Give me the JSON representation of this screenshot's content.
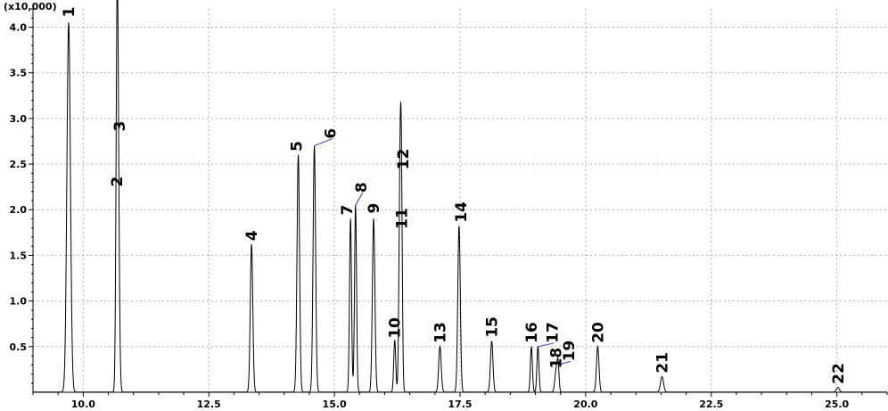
{
  "chart_data": {
    "type": "line",
    "title": "",
    "xlabel": "",
    "ylabel": "",
    "y_multiplier_label": "(x10,000)",
    "xlim": [
      9.0,
      26.0
    ],
    "ylim": [
      0,
      4.2
    ],
    "x_ticks": [
      "10.0",
      "12.5",
      "15.0",
      "17.5",
      "20.0",
      "22.5",
      "25.0"
    ],
    "x_tick_values": [
      10.0,
      12.5,
      15.0,
      17.5,
      20.0,
      22.5,
      25.0
    ],
    "y_ticks": [
      "0.5",
      "1.0",
      "1.5",
      "2.0",
      "2.5",
      "3.0",
      "3.5",
      "4.0"
    ],
    "y_tick_values": [
      0.5,
      1.0,
      1.5,
      2.0,
      2.5,
      3.0,
      3.5,
      4.0
    ],
    "grid": true,
    "line_color": "#000000",
    "annotation_color": "#3333cc",
    "peaks": [
      {
        "label": "1",
        "rt": 9.71,
        "height": 4.05,
        "width": 0.035
      },
      {
        "label": "2",
        "rt": 10.67,
        "height": 2.25,
        "width": 0.02
      },
      {
        "label": "3",
        "rt": 10.69,
        "height": 2.8,
        "width": 0.025
      },
      {
        "label": "4",
        "rt": 13.35,
        "height": 1.62,
        "width": 0.025
      },
      {
        "label": "5",
        "rt": 14.28,
        "height": 2.6,
        "width": 0.025
      },
      {
        "label": "6",
        "rt": 14.6,
        "height": 2.7,
        "width": 0.025
      },
      {
        "label": "7",
        "rt": 15.32,
        "height": 1.9,
        "width": 0.02
      },
      {
        "label": "8",
        "rt": 15.42,
        "height": 2.05,
        "width": 0.02
      },
      {
        "label": "9",
        "rt": 15.78,
        "height": 1.9,
        "width": 0.025
      },
      {
        "label": "10",
        "rt": 16.2,
        "height": 0.57,
        "width": 0.02
      },
      {
        "label": "11",
        "rt": 16.3,
        "height": 1.75,
        "width": 0.02
      },
      {
        "label": "12",
        "rt": 16.33,
        "height": 2.4,
        "width": 0.02
      },
      {
        "label": "13",
        "rt": 17.1,
        "height": 0.5,
        "width": 0.025
      },
      {
        "label": "14",
        "rt": 17.48,
        "height": 1.82,
        "width": 0.025
      },
      {
        "label": "15",
        "rt": 18.13,
        "height": 0.56,
        "width": 0.025
      },
      {
        "label": "16",
        "rt": 18.92,
        "height": 0.5,
        "width": 0.02
      },
      {
        "label": "17",
        "rt": 19.05,
        "height": 0.5,
        "width": 0.02
      },
      {
        "label": "18",
        "rt": 19.41,
        "height": 0.22,
        "width": 0.025
      },
      {
        "label": "19",
        "rt": 19.45,
        "height": 0.3,
        "width": 0.02
      },
      {
        "label": "20",
        "rt": 20.24,
        "height": 0.5,
        "width": 0.025
      },
      {
        "label": "21",
        "rt": 21.52,
        "height": 0.17,
        "width": 0.03
      },
      {
        "label": "22",
        "rt": 25.02,
        "height": 0.05,
        "width": 0.03
      }
    ]
  }
}
